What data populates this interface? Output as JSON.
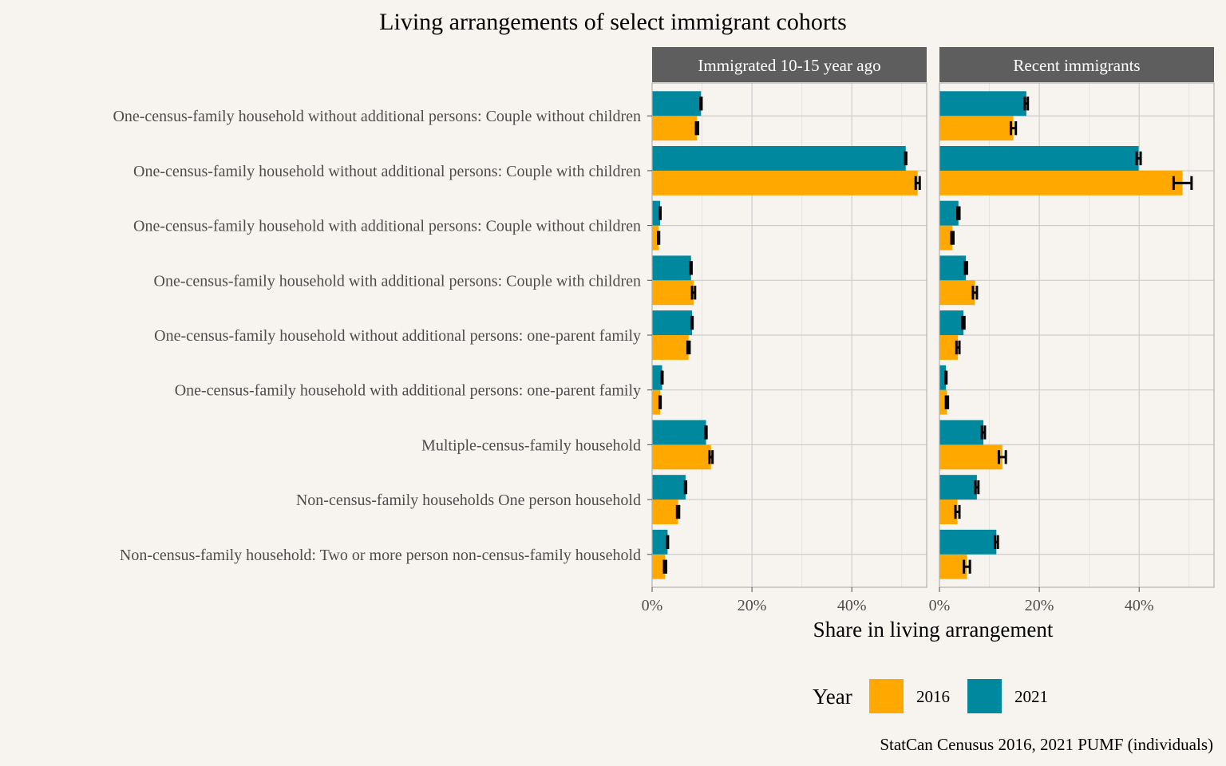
{
  "chart_data": {
    "type": "bar",
    "orientation": "horizontal",
    "title": "Living arrangements of select immigrant cohorts",
    "xlabel": "Share in living arrangement",
    "caption": "StatCan Cenusus 2016, 2021 PUMF (individuals)",
    "x_ticks": [
      "0%",
      "20%",
      "40%"
    ],
    "xlim": [
      0,
      0.55
    ],
    "grid": true,
    "legend": {
      "title": "Year",
      "position": "bottom",
      "items": [
        {
          "label": "2016",
          "color": "#ffa800"
        },
        {
          "label": "2021",
          "color": "#00899e"
        }
      ]
    },
    "categories": [
      "One-census-family household without additional persons: Couple without children",
      "One-census-family household without additional persons: Couple with children",
      "One-census-family household with additional persons: Couple without children",
      "One-census-family household with additional persons: Couple with children",
      "One-census-family household without additional persons: one-parent family",
      "One-census-family household with additional persons: one-parent family",
      "Multiple-census-family household",
      "Non-census-family households One person household",
      "Non-census-family household: Two or more person non-census-family household"
    ],
    "panels": [
      {
        "title": "Immigrated 10-15 year ago",
        "series": [
          {
            "name": "2016",
            "values": [
              0.09,
              0.532,
              0.013,
              0.083,
              0.073,
              0.016,
              0.118,
              0.052,
              0.026
            ],
            "err": [
              0.002,
              0.004,
              0.001,
              0.003,
              0.002,
              0.001,
              0.003,
              0.002,
              0.002
            ]
          },
          {
            "name": "2021",
            "values": [
              0.098,
              0.508,
              0.016,
              0.078,
              0.08,
              0.02,
              0.108,
              0.067,
              0.031
            ],
            "err": [
              0.001,
              0.001,
              0.0008,
              0.001,
              0.001,
              0.0008,
              0.001,
              0.001,
              0.0008
            ]
          }
        ]
      },
      {
        "title": "Recent immigrants",
        "series": [
          {
            "name": "2016",
            "values": [
              0.148,
              0.487,
              0.026,
              0.071,
              0.037,
              0.015,
              0.126,
              0.036,
              0.055
            ],
            "err": [
              0.005,
              0.018,
              0.002,
              0.004,
              0.003,
              0.002,
              0.007,
              0.004,
              0.006
            ]
          },
          {
            "name": "2021",
            "values": [
              0.174,
              0.399,
              0.038,
              0.053,
              0.048,
              0.013,
              0.088,
              0.075,
              0.114
            ],
            "err": [
              0.003,
              0.004,
              0.002,
              0.002,
              0.002,
              0.001,
              0.003,
              0.003,
              0.003
            ]
          }
        ]
      }
    ]
  }
}
